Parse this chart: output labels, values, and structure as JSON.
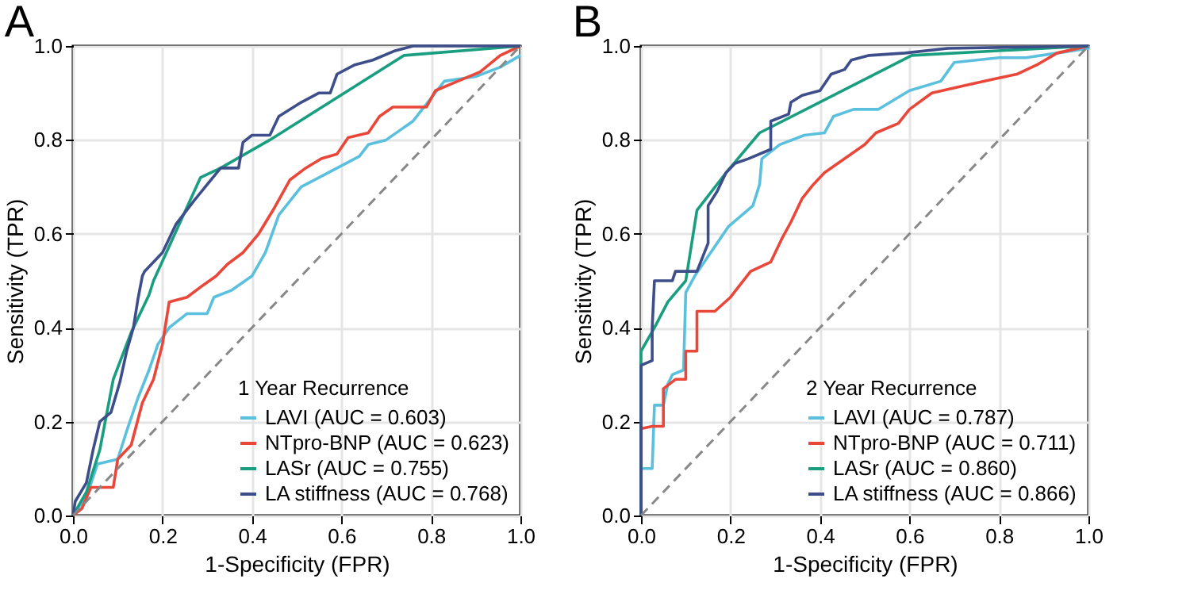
{
  "chart_data": [
    {
      "type": "line",
      "title": "A",
      "xlabel": "1-Specificity (FPR)",
      "ylabel": "Sensitivity (TPR)",
      "legend_title": "1 Year Recurrence",
      "legend": "bottom right",
      "grid": true,
      "xlim": [
        0,
        1
      ],
      "ylim": [
        0,
        1
      ],
      "xticks": [
        {
          "value": 0,
          "label": "0.0"
        },
        {
          "value": 0.2,
          "label": "0.2"
        },
        {
          "value": 0.4,
          "label": "0.4"
        },
        {
          "value": 0.6,
          "label": "0.6"
        },
        {
          "value": 0.8,
          "label": "0.8"
        },
        {
          "value": 1,
          "label": "1.0"
        }
      ],
      "yticks": [
        {
          "value": 0,
          "label": "0.0"
        },
        {
          "value": 0.2,
          "label": "0.2"
        },
        {
          "value": 0.4,
          "label": "0.4"
        },
        {
          "value": 0.6,
          "label": "0.6"
        },
        {
          "value": 0.8,
          "label": "0.8"
        },
        {
          "value": 1,
          "label": "1.0"
        }
      ],
      "series": [
        {
          "name": "LAVI (AUC = 0.603)",
          "color": "#5bc0de",
          "x": [
            0,
            0.03,
            0.055,
            0.1,
            0.12,
            0.145,
            0.17,
            0.19,
            0.215,
            0.255,
            0.3,
            0.315,
            0.355,
            0.4,
            0.43,
            0.46,
            0.51,
            0.57,
            0.64,
            0.66,
            0.7,
            0.76,
            0.83,
            0.9,
            0.955,
            1
          ],
          "values": [
            0,
            0.04,
            0.11,
            0.12,
            0.18,
            0.25,
            0.31,
            0.365,
            0.4,
            0.43,
            0.43,
            0.465,
            0.48,
            0.51,
            0.56,
            0.64,
            0.7,
            0.73,
            0.765,
            0.79,
            0.8,
            0.84,
            0.925,
            0.935,
            0.955,
            0.98
          ]
        },
        {
          "name": "NTpro-BNP (AUC = 0.623)",
          "color": "#e8473a",
          "x": [
            0,
            0.02,
            0.04,
            0.09,
            0.1,
            0.13,
            0.155,
            0.18,
            0.2,
            0.215,
            0.255,
            0.29,
            0.32,
            0.345,
            0.38,
            0.415,
            0.45,
            0.485,
            0.52,
            0.555,
            0.59,
            0.615,
            0.66,
            0.685,
            0.715,
            0.79,
            0.81,
            0.86,
            0.91,
            0.955,
            1
          ],
          "values": [
            0,
            0.015,
            0.06,
            0.06,
            0.12,
            0.15,
            0.24,
            0.29,
            0.365,
            0.455,
            0.465,
            0.49,
            0.51,
            0.535,
            0.56,
            0.6,
            0.655,
            0.715,
            0.74,
            0.76,
            0.77,
            0.805,
            0.815,
            0.85,
            0.87,
            0.87,
            0.905,
            0.925,
            0.945,
            0.98,
            1
          ]
        },
        {
          "name": "LASr (AUC = 0.755)",
          "color": "#1a9e80",
          "x": [
            0,
            0.03,
            0.06,
            0.09,
            0.13,
            0.17,
            0.18,
            0.285,
            0.33,
            0.44,
            0.74,
            1
          ],
          "values": [
            0,
            0.05,
            0.14,
            0.29,
            0.39,
            0.47,
            0.5,
            0.72,
            0.74,
            0.8,
            0.98,
            1
          ]
        },
        {
          "name": "LA stiffness (AUC = 0.768)",
          "color": "#3d4e8a",
          "x": [
            0,
            0.005,
            0.03,
            0.045,
            0.06,
            0.085,
            0.105,
            0.12,
            0.135,
            0.145,
            0.155,
            0.16,
            0.2,
            0.23,
            0.27,
            0.33,
            0.37,
            0.38,
            0.4,
            0.44,
            0.46,
            0.51,
            0.55,
            0.575,
            0.59,
            0.63,
            0.67,
            0.72,
            0.76,
            1
          ],
          "values": [
            0,
            0.03,
            0.07,
            0.14,
            0.2,
            0.22,
            0.285,
            0.35,
            0.4,
            0.46,
            0.51,
            0.52,
            0.56,
            0.62,
            0.67,
            0.74,
            0.74,
            0.795,
            0.81,
            0.81,
            0.85,
            0.88,
            0.9,
            0.9,
            0.94,
            0.96,
            0.97,
            0.99,
            1,
            1
          ]
        },
        {
          "color": "#888888",
          "line_style": "dashed",
          "x": [
            0,
            1
          ],
          "values": [
            0,
            1
          ]
        }
      ]
    },
    {
      "type": "line",
      "title": "B",
      "xlabel": "1-Specificity (FPR)",
      "ylabel": "Sensitivity (TPR)",
      "legend_title": "2 Year Recurrence",
      "legend": "bottom right",
      "grid": true,
      "xlim": [
        0,
        1
      ],
      "ylim": [
        0,
        1
      ],
      "xticks": [
        {
          "value": 0,
          "label": "0.0"
        },
        {
          "value": 0.2,
          "label": "0.2"
        },
        {
          "value": 0.4,
          "label": "0.4"
        },
        {
          "value": 0.6,
          "label": "0.6"
        },
        {
          "value": 0.8,
          "label": "0.8"
        },
        {
          "value": 1,
          "label": "1.0"
        }
      ],
      "yticks": [
        {
          "value": 0,
          "label": "0.0"
        },
        {
          "value": 0.2,
          "label": "0.2"
        },
        {
          "value": 0.4,
          "label": "0.4"
        },
        {
          "value": 0.6,
          "label": "0.6"
        },
        {
          "value": 0.8,
          "label": "0.8"
        },
        {
          "value": 1,
          "label": "1.0"
        }
      ],
      "series": [
        {
          "name": "LAVI (AUC = 0.787)",
          "color": "#5bc0de",
          "x": [
            0,
            0,
            0.025,
            0.03,
            0.05,
            0.06,
            0.07,
            0.095,
            0.1,
            0.12,
            0.195,
            0.25,
            0.265,
            0.27,
            0.31,
            0.365,
            0.41,
            0.43,
            0.475,
            0.53,
            0.6,
            0.67,
            0.7,
            0.8,
            0.86,
            0.93,
            1,
            1
          ],
          "values": [
            0,
            0.1,
            0.1,
            0.235,
            0.235,
            0.28,
            0.3,
            0.31,
            0.475,
            0.51,
            0.615,
            0.66,
            0.705,
            0.76,
            0.79,
            0.81,
            0.815,
            0.85,
            0.865,
            0.865,
            0.905,
            0.925,
            0.965,
            0.975,
            0.975,
            0.985,
            0.995,
            1
          ]
        },
        {
          "name": "NTpro-BNP (AUC = 0.711)",
          "color": "#e8473a",
          "x": [
            0,
            0,
            0.025,
            0.05,
            0.05,
            0.077,
            0.1,
            0.1,
            0.125,
            0.125,
            0.165,
            0.2,
            0.245,
            0.29,
            0.315,
            0.335,
            0.36,
            0.385,
            0.41,
            0.455,
            0.5,
            0.525,
            0.575,
            0.6,
            0.65,
            0.72,
            0.79,
            0.84,
            0.885,
            0.93,
            1
          ],
          "values": [
            0,
            0.185,
            0.19,
            0.19,
            0.27,
            0.29,
            0.29,
            0.35,
            0.35,
            0.435,
            0.435,
            0.465,
            0.52,
            0.54,
            0.59,
            0.625,
            0.675,
            0.705,
            0.73,
            0.76,
            0.79,
            0.815,
            0.835,
            0.865,
            0.9,
            0.915,
            0.93,
            0.94,
            0.96,
            0.985,
            1
          ]
        },
        {
          "name": "LASr (AUC = 0.860)",
          "color": "#1a9e80",
          "x": [
            0,
            0,
            0.03,
            0.06,
            0.1,
            0.125,
            0.19,
            0.265,
            0.605,
            1
          ],
          "values": [
            0,
            0.35,
            0.4,
            0.455,
            0.5,
            0.65,
            0.73,
            0.815,
            0.98,
            1
          ]
        },
        {
          "name": "LA stiffness (AUC = 0.866)",
          "color": "#3d4e8a",
          "x": [
            0,
            0,
            0.025,
            0.025,
            0.03,
            0.07,
            0.077,
            0.125,
            0.15,
            0.15,
            0.17,
            0.19,
            0.21,
            0.24,
            0.29,
            0.29,
            0.33,
            0.335,
            0.36,
            0.4,
            0.425,
            0.455,
            0.47,
            0.51,
            0.59,
            0.685,
            1
          ],
          "values": [
            0,
            0.32,
            0.33,
            0.4,
            0.5,
            0.5,
            0.52,
            0.52,
            0.58,
            0.66,
            0.69,
            0.73,
            0.75,
            0.76,
            0.78,
            0.84,
            0.855,
            0.88,
            0.895,
            0.905,
            0.94,
            0.95,
            0.97,
            0.98,
            0.985,
            0.995,
            1
          ]
        },
        {
          "color": "#888888",
          "line_style": "dashed",
          "x": [
            0,
            1
          ],
          "values": [
            0,
            1
          ]
        }
      ]
    }
  ]
}
